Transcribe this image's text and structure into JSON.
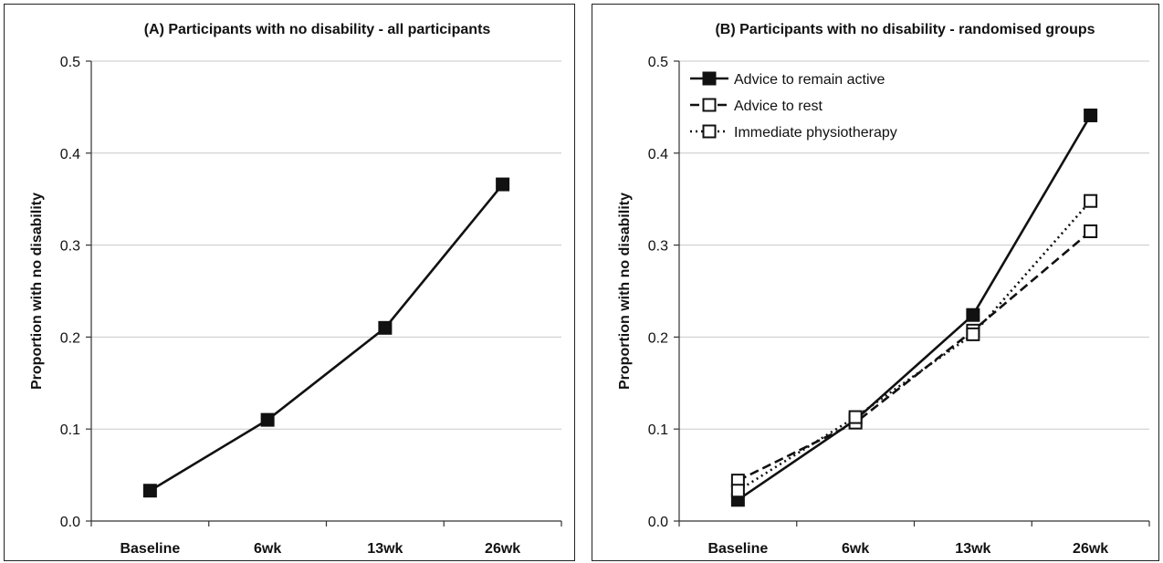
{
  "chart_data": [
    {
      "type": "line",
      "title": "(A) Participants with no disability - all participants",
      "xlabel": "",
      "ylabel": "Proportion with no disability",
      "categories": [
        "Baseline",
        "6wk",
        "13wk",
        "26wk"
      ],
      "ylim": [
        0,
        0.5
      ],
      "yticks": [
        "0.0",
        "0.1",
        "0.2",
        "0.3",
        "0.4",
        "0.5"
      ],
      "grid": true,
      "series": [
        {
          "values": [
            0.033,
            0.11,
            0.21,
            0.366
          ],
          "color": "#111111",
          "marker": "filled-square",
          "line": "solid"
        }
      ]
    },
    {
      "type": "line",
      "title": "(B) Participants with no disability - randomised groups",
      "xlabel": "",
      "ylabel": "Proportion with no disability",
      "categories": [
        "Baseline",
        "6wk",
        "13wk",
        "26wk"
      ],
      "ylim": [
        0,
        0.5
      ],
      "yticks": [
        "0.0",
        "0.1",
        "0.2",
        "0.3",
        "0.4",
        "0.5"
      ],
      "grid": true,
      "legend_position": "top-left",
      "series": [
        {
          "name": "Advice to remain active",
          "values": [
            0.023,
            0.11,
            0.224,
            0.441
          ],
          "color": "#111111",
          "marker": "filled-square",
          "line": "solid"
        },
        {
          "name": "Advice to rest",
          "values": [
            0.044,
            0.107,
            0.207,
            0.315
          ],
          "color": "#111111",
          "marker": "open-square",
          "line": "dashed"
        },
        {
          "name": "Immediate physiotherapy",
          "values": [
            0.033,
            0.113,
            0.203,
            0.348
          ],
          "color": "#111111",
          "marker": "open-square",
          "line": "dotted"
        }
      ]
    }
  ]
}
